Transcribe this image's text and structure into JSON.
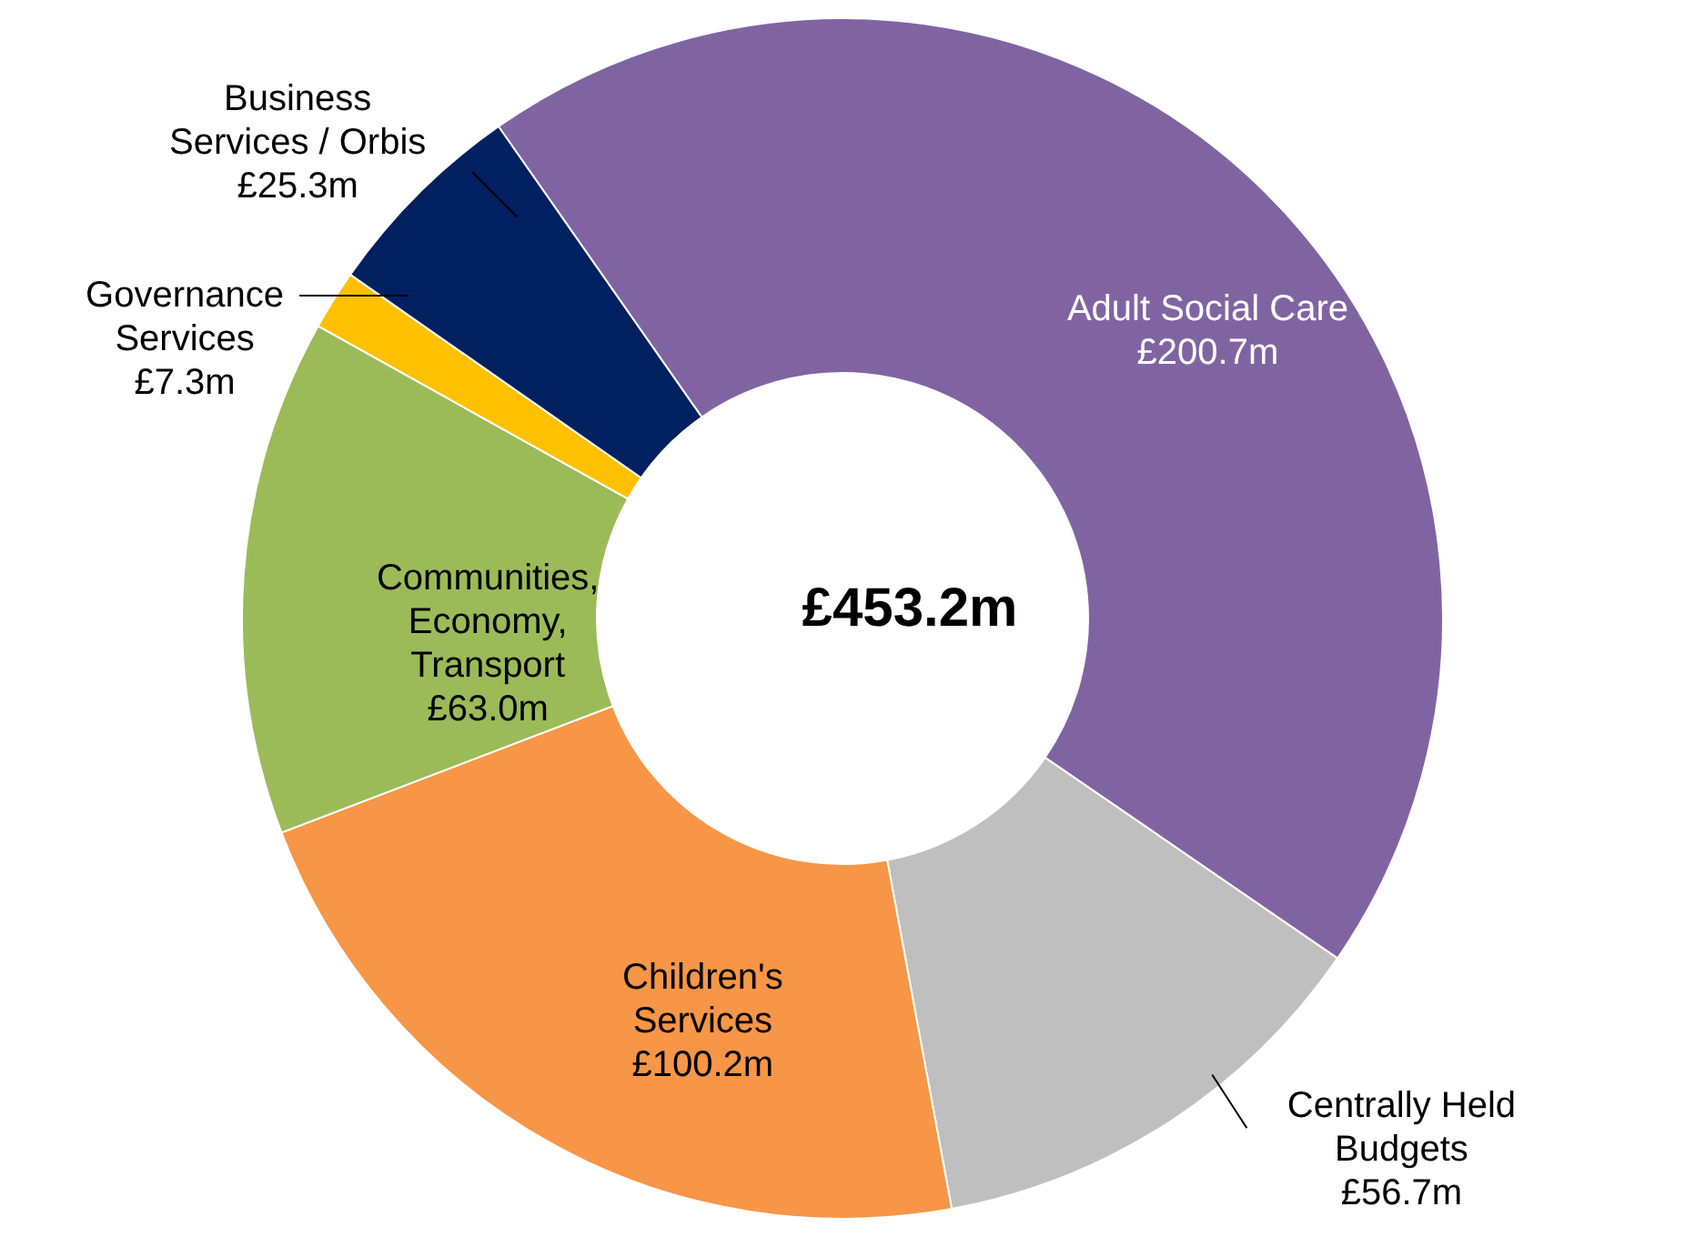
{
  "chart_data": {
    "type": "donut",
    "categories": [
      "Adult Social Care",
      "Centrally Held Budgets",
      "Children's Services",
      "Communities, Economy, Transport",
      "Governance Services",
      "Business Services / Orbis"
    ],
    "values": [
      200.7,
      56.7,
      100.2,
      63.0,
      7.3,
      25.3
    ],
    "value_labels": [
      "£200.7m",
      "£56.7m",
      "£100.2m",
      "£63.0m",
      "£7.3m",
      "£25.3m"
    ],
    "colors": [
      "#8064a2",
      "#bfbfbf",
      "#f79646",
      "#9bbb59",
      "#ffc000",
      "#002060"
    ],
    "annotations": [
      "£453.2m"
    ]
  }
}
